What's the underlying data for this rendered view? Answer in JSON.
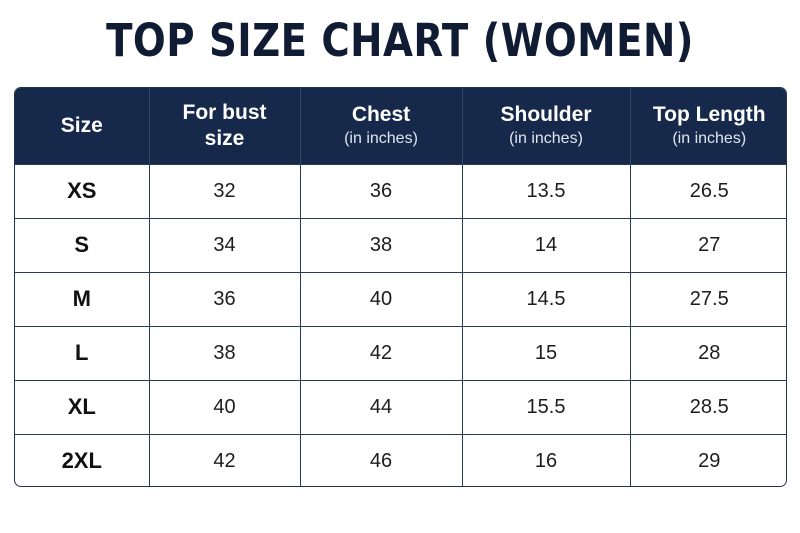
{
  "title": "TOP SIZE CHART (WOMEN)",
  "header": {
    "size": {
      "main": "Size",
      "sub": ""
    },
    "bust": {
      "main": "For bust",
      "sub": "size"
    },
    "chest": {
      "main": "Chest",
      "sub": "(in inches)"
    },
    "shoulder": {
      "main": "Shoulder",
      "sub": "(in inches)"
    },
    "length": {
      "main": "Top Length",
      "sub": "(in inches)"
    }
  },
  "rows": [
    {
      "size": "XS",
      "bust": "32",
      "chest": "36",
      "shoulder": "13.5",
      "length": "26.5"
    },
    {
      "size": "S",
      "bust": "34",
      "chest": "38",
      "shoulder": "14",
      "length": "27"
    },
    {
      "size": "M",
      "bust": "36",
      "chest": "40",
      "shoulder": "14.5",
      "length": "27.5"
    },
    {
      "size": "L",
      "bust": "38",
      "chest": "42",
      "shoulder": "15",
      "length": "28"
    },
    {
      "size": "XL",
      "bust": "40",
      "chest": "44",
      "shoulder": "15.5",
      "length": "28.5"
    },
    {
      "size": "2XL",
      "bust": "42",
      "chest": "46",
      "shoulder": "16",
      "length": "29"
    }
  ],
  "colors": {
    "header_bg": "#16294a",
    "title": "#0f1c33",
    "border": "#20324f"
  }
}
